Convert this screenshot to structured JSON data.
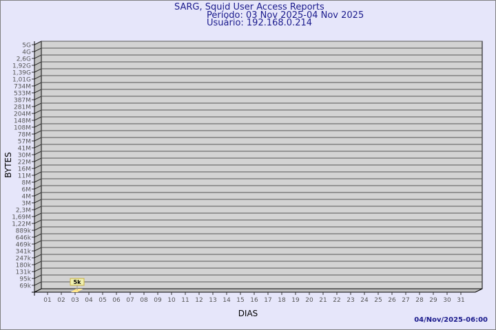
{
  "chart_data": {
    "type": "bar",
    "title": "SARG, Squid User Access Reports",
    "subtitle_period": "Período: 03 Nov 2025-04 Nov 2025",
    "subtitle_user": "Usuário: 192.168.0.214",
    "xlabel": "DIAS",
    "ylabel": "BYTES",
    "y_scale": "log",
    "y_ticks": [
      "5G",
      "4G",
      "2,6G",
      "1,92G",
      "1,39G",
      "1,01G",
      "734M",
      "533M",
      "387M",
      "281M",
      "204M",
      "148M",
      "108M",
      "78M",
      "57M",
      "41M",
      "30M",
      "22M",
      "16M",
      "11M",
      "8M",
      "6M",
      "4M",
      "3M",
      "2,3M",
      "1,69M",
      "1,22M",
      "889k",
      "646k",
      "469k",
      "341k",
      "247k",
      "180k",
      "131k",
      "95k",
      "69k"
    ],
    "categories": [
      "01",
      "02",
      "03",
      "04",
      "05",
      "06",
      "07",
      "08",
      "09",
      "10",
      "11",
      "12",
      "13",
      "14",
      "15",
      "16",
      "17",
      "18",
      "19",
      "20",
      "21",
      "22",
      "23",
      "24",
      "25",
      "26",
      "27",
      "28",
      "29",
      "30",
      "31"
    ],
    "bars": [
      {
        "category": "03",
        "value": 5000,
        "label": "5k"
      }
    ],
    "grid": true,
    "colors": {
      "wall": "#d3d3d3",
      "side": "#c0c0c0",
      "bar": "#ffe58a",
      "label_box": "#f0f0b0",
      "text": "#1a1a8c",
      "tick_text": "#555555"
    }
  },
  "footer": "04/Nov/2025-06:00"
}
